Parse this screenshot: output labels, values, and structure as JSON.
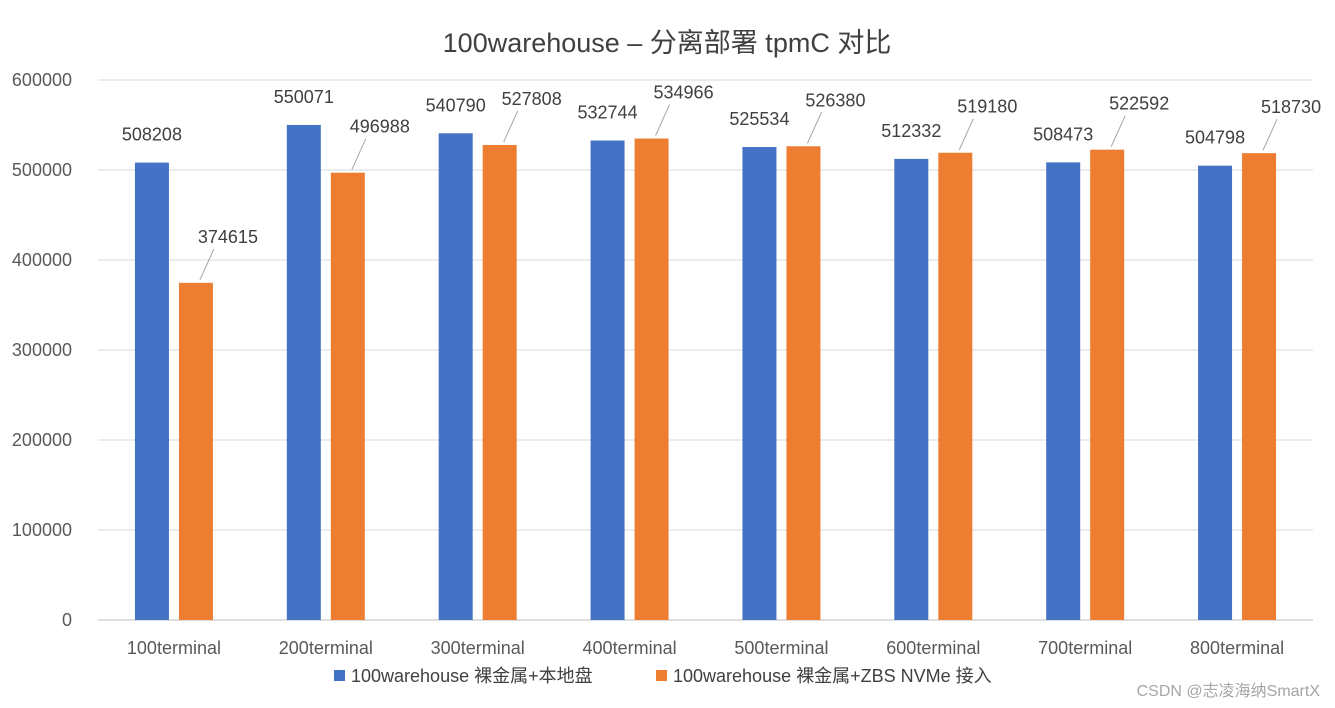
{
  "chart_data": {
    "type": "bar",
    "title": "100warehouse – 分离部署 tpmC 对比",
    "xlabel": "",
    "ylabel": "",
    "ylim": [
      0,
      600000
    ],
    "yticks": [
      "0",
      "100000",
      "200000",
      "300000",
      "400000",
      "500000",
      "600000"
    ],
    "grid": true,
    "legend_position": "bottom",
    "categories": [
      "100terminal",
      "200terminal",
      "300terminal",
      "400terminal",
      "500terminal",
      "600terminal",
      "700terminal",
      "800terminal"
    ],
    "series": [
      {
        "name": "100warehouse 裸金属+本地盘",
        "color": "#4472C4",
        "values": [
          508208,
          550071,
          540790,
          532744,
          525534,
          512332,
          508473,
          504798
        ],
        "labels": [
          "508208",
          "550071",
          "540790",
          "532744",
          "525534",
          "512332",
          "508473",
          "504798"
        ]
      },
      {
        "name": "100warehouse 裸金属+ZBS NVMe 接入",
        "color": "#ED7D31",
        "values": [
          374615,
          496988,
          527808,
          534966,
          526380,
          519180,
          522592,
          518730
        ],
        "labels": [
          "374615",
          "496988",
          "527808",
          "534966",
          "526380",
          "519180",
          "522592",
          "518730"
        ]
      }
    ]
  },
  "watermark": "CSDN @志凌海纳SmartX"
}
